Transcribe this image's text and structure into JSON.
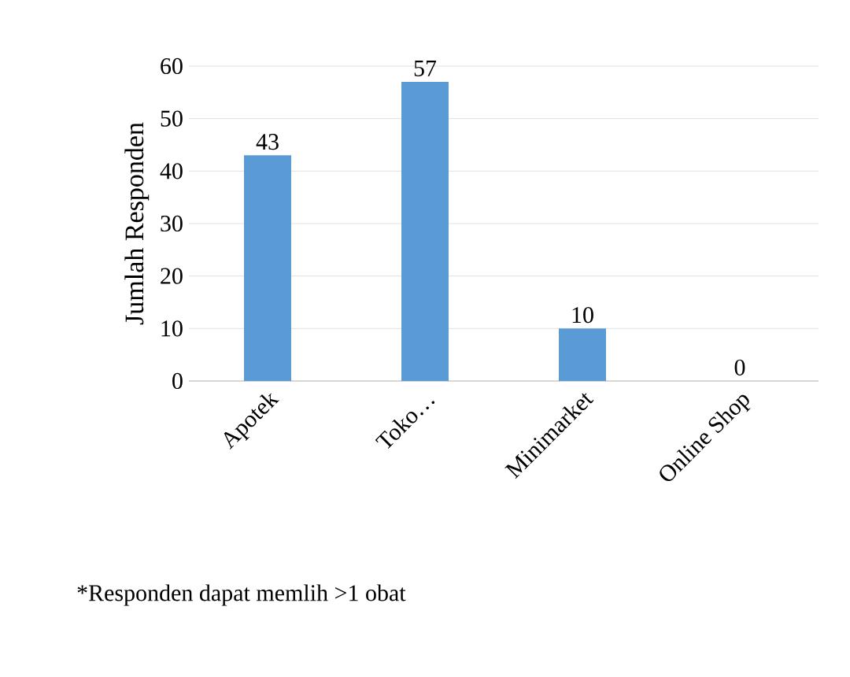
{
  "chart_data": {
    "type": "bar",
    "ylabel": "Jumlah Responden",
    "categories": [
      "Apotek",
      "Toko…",
      "Minimarket",
      "Online Shop"
    ],
    "values": [
      43,
      57,
      10,
      0
    ],
    "color": "#5b9bd5",
    "ylim": [
      0,
      60
    ],
    "yticks": [
      0,
      10,
      20,
      30,
      40,
      50,
      60
    ],
    "grid": "y",
    "data_labels": true,
    "annotations": [
      "*Responden dapat memlih >1 obat"
    ]
  }
}
